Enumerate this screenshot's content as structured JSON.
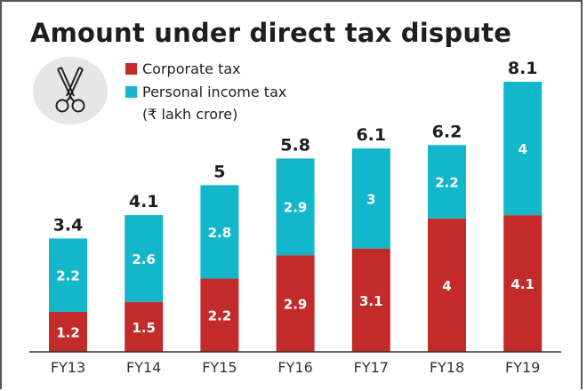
{
  "chart_data": {
    "type": "bar",
    "stacked": true,
    "title": "Amount under direct tax dispute",
    "unit_label": "(₹ lakh crore)",
    "categories": [
      "FY13",
      "FY14",
      "FY15",
      "FY16",
      "FY17",
      "FY18",
      "FY19"
    ],
    "series": [
      {
        "name": "Corporate tax",
        "color": "#c22b29",
        "values": [
          1.2,
          1.5,
          2.2,
          2.9,
          3.1,
          4,
          4.1
        ]
      },
      {
        "name": "Personal income tax",
        "color": "#12b7cb",
        "values": [
          2.2,
          2.6,
          2.8,
          2.9,
          3,
          2.2,
          4
        ]
      }
    ],
    "totals": [
      "3.4",
      "4.1",
      "5",
      "5.8",
      "6.1",
      "6.2",
      "8.1"
    ],
    "corporate_labels": [
      "1.2",
      "1.5",
      "2.2",
      "2.9",
      "3.1",
      "4",
      "4.1"
    ],
    "personal_labels": [
      "2.2",
      "2.6",
      "2.8",
      "2.9",
      "3",
      "2.2",
      "4"
    ],
    "ylim": [
      0,
      8.1
    ],
    "grid": false,
    "legend_position": "top-left",
    "xlabel": "",
    "ylabel": ""
  },
  "icon": "scissors-icon"
}
